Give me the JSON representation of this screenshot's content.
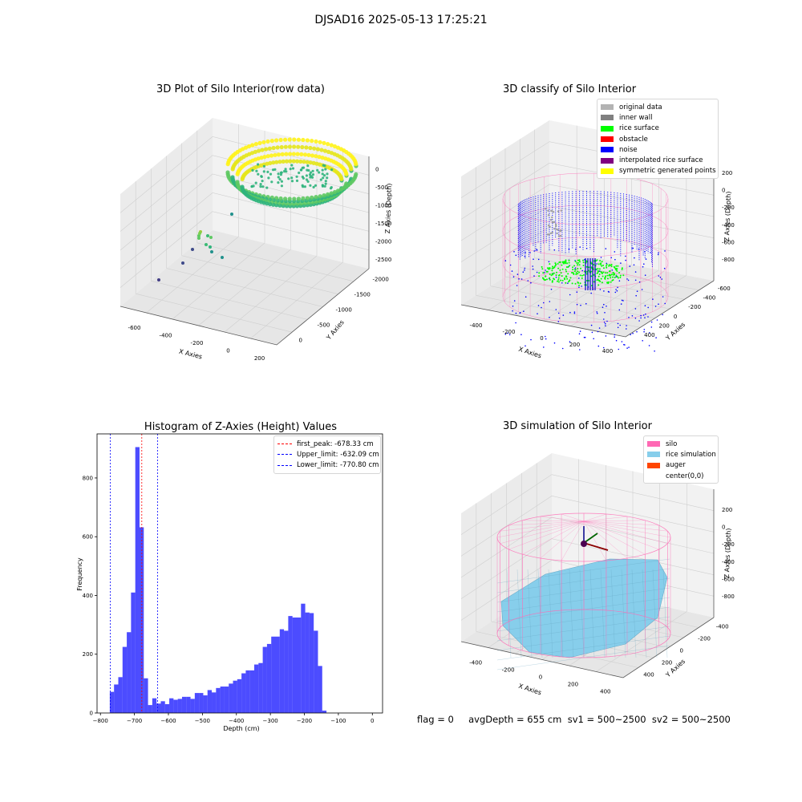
{
  "figure": {
    "suptitle": "DJSAD16 2025-05-13 17:25:21"
  },
  "panel_raw": {
    "title": "3D Plot of Silo Interior(row data)",
    "xlabel": "X Axies",
    "ylabel": "Y Axies",
    "zlabel": "Z Axies (Depth)",
    "xticks": [
      "-600",
      "-400",
      "-200",
      "0",
      "200"
    ],
    "yticks": [
      "0",
      "-500",
      "-1000",
      "-1500",
      "-2000"
    ],
    "zticks": [
      "0",
      "-500",
      "-1000",
      "-1500",
      "-2000",
      "-2500"
    ]
  },
  "panel_classify": {
    "title": "3D classify of Silo Interior",
    "xlabel": "X Axies",
    "ylabel": "Y Axies",
    "zlabel": "Z Axies (Depth)",
    "xticks": [
      "-400",
      "-200",
      "0",
      "200",
      "400"
    ],
    "yticks": [
      "400",
      "200",
      "0",
      "-200",
      "-400",
      "-600"
    ],
    "zticks": [
      "200",
      "0",
      "-200",
      "-400",
      "-600",
      "-800"
    ],
    "legend": [
      {
        "label": "original data",
        "color": "#b3b3b3"
      },
      {
        "label": "inner wall",
        "color": "#808080"
      },
      {
        "label": "rice surface",
        "color": "#00ff00"
      },
      {
        "label": "obstacle",
        "color": "#ff0000"
      },
      {
        "label": "noise",
        "color": "#0000ff"
      },
      {
        "label": "interpolated rice surface",
        "color": "#800080"
      },
      {
        "label": "symmetric generated points",
        "color": "#ffff00"
      }
    ]
  },
  "panel_sim": {
    "title": "3D simulation of Silo Interior",
    "xlabel": "X Axies",
    "ylabel": "Y Axies",
    "zlabel": "Z Axies (Depth)",
    "xticks": [
      "-400",
      "-200",
      "0",
      "200",
      "400"
    ],
    "yticks": [
      "400",
      "200",
      "0",
      "-200",
      "-400"
    ],
    "zticks": [
      "200",
      "0",
      "-200",
      "-400",
      "-600",
      "-800"
    ],
    "legend": [
      {
        "label": "silo",
        "color": "#ff69b4"
      },
      {
        "label": "rice simulation",
        "color": "#87ceeb"
      },
      {
        "label": "auger",
        "color": "#ff4500"
      },
      {
        "label": "center(0,0)",
        "color": "#ffffff"
      }
    ]
  },
  "footer": {
    "text": "flag = 0     avgDepth = 655 cm  sv1 = 500~2500  sv2 = 500~2500"
  },
  "chart_data": {
    "type": "bar",
    "title": "Histogram of Z-Axies (Height) Values",
    "xlabel": "Depth (cm)",
    "ylabel": "Frequency",
    "xlim": [
      -810,
      30
    ],
    "ylim": [
      0,
      950
    ],
    "xticks": [
      -800,
      -700,
      -600,
      -500,
      -400,
      -300,
      -200,
      -100,
      0
    ],
    "yticks": [
      0,
      200,
      400,
      600,
      800
    ],
    "bar_color": "#0000ff",
    "bin_width": 12.5,
    "bins_start": [
      -772.5,
      -760,
      -747.5,
      -735,
      -722.5,
      -710,
      -697.5,
      -685,
      -672.5,
      -660,
      -647.5,
      -635,
      -622.5,
      -610,
      -597.5,
      -585,
      -572.5,
      -560,
      -547.5,
      -535,
      -522.5,
      -510,
      -497.5,
      -485,
      -472.5,
      -460,
      -447.5,
      -435,
      -422.5,
      -410,
      -397.5,
      -385,
      -372.5,
      -360,
      -347.5,
      -335,
      -322.5,
      -310,
      -297.5,
      -285,
      -272.5,
      -260,
      -247.5,
      -235,
      -222.5,
      -210,
      -197.5,
      -185,
      -172.5,
      -160,
      -147.5,
      -135,
      -122.5,
      -110,
      -97.5,
      -85,
      -72.5,
      -60,
      -47.5,
      -35,
      -22.5,
      -10
    ],
    "counts": [
      72,
      97,
      122,
      225,
      275,
      410,
      905,
      632,
      118,
      27,
      50,
      32,
      40,
      30,
      50,
      45,
      48,
      55,
      55,
      48,
      68,
      68,
      60,
      78,
      70,
      85,
      90,
      90,
      100,
      110,
      115,
      135,
      145,
      145,
      165,
      170,
      225,
      235,
      260,
      260,
      285,
      280,
      330,
      325,
      325,
      372,
      342,
      340,
      280,
      160,
      8,
      0,
      0,
      0,
      0,
      0,
      0,
      0,
      0,
      0,
      0,
      0
    ],
    "vlines": [
      {
        "label": "first_peak: -678.33 cm",
        "value": -678.33,
        "color": "#ff0000"
      },
      {
        "label": "Upper_limit: -632.09 cm",
        "value": -632.09,
        "color": "#0000ff"
      },
      {
        "label": "Lower_limit: -770.80 cm",
        "value": -770.8,
        "color": "#0000ff"
      }
    ],
    "legend_position": "upper right"
  }
}
